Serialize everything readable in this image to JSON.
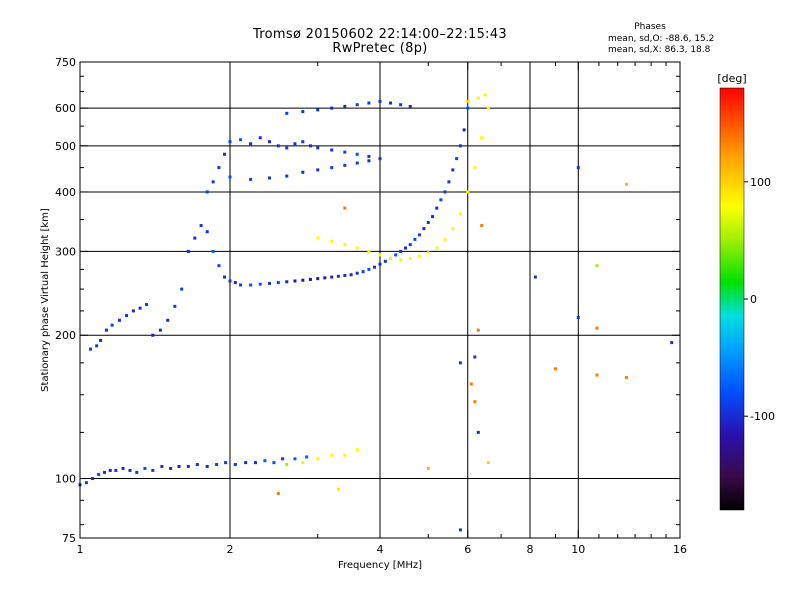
{
  "title_line1": "Tromsø 20150602 22:14:00–22:15:43",
  "title_line2": "RwPretec (8p)",
  "phases": {
    "title": "Phases",
    "o_mode": "mean, sd,O: -88.6, 15.2",
    "x_mode": "mean, sd,X: 86.3, 18.8"
  },
  "colorbar": {
    "label": "[deg]",
    "ticks": [
      {
        "value": 100,
        "label": "100"
      },
      {
        "value": 0,
        "label": "0"
      },
      {
        "value": -100,
        "label": "-100"
      }
    ],
    "range": [
      -180,
      180
    ]
  },
  "chart_data": {
    "type": "scatter",
    "title": "Tromsø 20150602 22:14:00–22:15:43",
    "subtitle": "RwPretec (8p)",
    "xlabel": "Frequency [MHz]",
    "ylabel": "Stationary phase Virtual Height [km]",
    "x_scale": "log",
    "y_scale": "log",
    "xlim": [
      1,
      16
    ],
    "ylim": [
      75,
      750
    ],
    "x_ticks": [
      {
        "value": 1,
        "label": "1"
      },
      {
        "value": 2,
        "label": "2"
      },
      {
        "value": 4,
        "label": "4"
      },
      {
        "value": 6,
        "label": "6"
      },
      {
        "value": 8,
        "label": "8"
      },
      {
        "value": 10,
        "label": "10"
      },
      {
        "value": 16,
        "label": "16"
      }
    ],
    "x_gridlines": [
      2,
      4,
      6,
      8,
      10
    ],
    "x_minor_ticks": [
      3,
      5,
      7,
      9,
      11,
      12,
      13,
      14,
      15
    ],
    "y_ticks": [
      {
        "value": 75,
        "label": "75"
      },
      {
        "value": 100,
        "label": "100"
      },
      {
        "value": 200,
        "label": "200"
      },
      {
        "value": 300,
        "label": "300"
      },
      {
        "value": 400,
        "label": "400"
      },
      {
        "value": 500,
        "label": "500"
      },
      {
        "value": 600,
        "label": "600"
      },
      {
        "value": 750,
        "label": "750"
      }
    ],
    "y_gridlines": [
      100,
      200,
      300,
      400,
      500,
      600
    ],
    "y_minor_ticks": [
      80,
      90,
      125,
      150,
      175,
      225,
      250,
      275,
      350,
      450,
      550,
      650,
      700
    ],
    "grid": true,
    "color_by": "phase [deg]",
    "series": [
      {
        "mode": "O",
        "x": [
          1.0,
          1.03,
          1.06,
          1.09,
          1.12,
          1.15,
          1.18,
          1.22,
          1.26,
          1.3,
          1.35,
          1.4,
          1.46,
          1.52,
          1.58,
          1.65,
          1.72,
          1.8,
          1.88,
          1.96,
          2.05,
          2.15,
          2.25,
          2.35,
          2.45,
          2.55,
          2.7,
          2.85
        ],
        "y": [
          97,
          98,
          100,
          102,
          103,
          104,
          104,
          105,
          104,
          103,
          105,
          104,
          106,
          105,
          106,
          106,
          107,
          106,
          107,
          108,
          107,
          108,
          108,
          109,
          108,
          110,
          110,
          111
        ],
        "phase": [
          -110,
          -108,
          -112,
          -105,
          -110,
          -115,
          -108,
          -112,
          -110,
          -105,
          -100,
          -108,
          -112,
          -110,
          -115,
          -108,
          -110,
          -112,
          -105,
          -110,
          -108,
          -112,
          -110,
          -95,
          -100,
          -105,
          -90,
          -85
        ]
      },
      {
        "mode": "O",
        "x": [
          1.05,
          1.08,
          1.1,
          1.13,
          1.16,
          1.2,
          1.24,
          1.28,
          1.32,
          1.36
        ],
        "y": [
          187,
          190,
          195,
          205,
          210,
          215,
          220,
          225,
          228,
          232
        ],
        "phase": [
          -110,
          -108,
          -112,
          -110,
          -105,
          -108,
          -110,
          -112,
          -110,
          -108
        ]
      },
      {
        "mode": "O",
        "x": [
          1.4,
          1.45,
          1.5,
          1.55,
          1.6,
          1.65,
          1.7,
          1.75,
          1.8,
          1.85,
          1.9,
          1.95,
          2.0,
          2.05,
          2.1,
          2.2,
          2.3,
          2.4,
          2.5,
          2.6,
          2.7,
          2.8,
          2.9,
          3.0,
          3.1,
          3.2,
          3.3,
          3.4,
          3.5,
          3.6,
          3.7,
          3.8,
          3.9,
          4.0,
          4.1,
          4.2,
          4.3,
          4.4,
          4.5,
          4.6,
          4.7,
          4.8,
          4.9,
          5.0,
          5.1,
          5.2,
          5.3,
          5.4,
          5.5,
          5.6,
          5.7,
          5.8,
          5.9,
          6.0
        ],
        "y": [
          200,
          205,
          215,
          230,
          250,
          300,
          320,
          340,
          330,
          300,
          280,
          265,
          260,
          258,
          255,
          255,
          256,
          257,
          258,
          259,
          260,
          261,
          262,
          263,
          264,
          265,
          266,
          267,
          268,
          270,
          272,
          275,
          278,
          282,
          286,
          290,
          295,
          300,
          305,
          310,
          318,
          325,
          335,
          345,
          355,
          370,
          385,
          400,
          420,
          445,
          470,
          500,
          540,
          600
        ],
        "phase": [
          -115,
          -110,
          -112,
          -108,
          -105,
          -110,
          -112,
          -108,
          -110,
          -100,
          -105,
          -110,
          -108,
          -112,
          -105,
          -100,
          -95,
          -110,
          -105,
          -115,
          -120,
          -125,
          -130,
          -125,
          -120,
          -115,
          -110,
          -108,
          -112,
          -110,
          -105,
          -100,
          -110,
          -112,
          -108,
          -105,
          -100,
          -110,
          -112,
          -108,
          -100,
          -105,
          -110,
          -108,
          -112,
          -110,
          -105,
          -108,
          -110,
          -112,
          -105,
          -108,
          -112,
          -100
        ]
      },
      {
        "mode": "O",
        "x": [
          1.8,
          1.85,
          1.9,
          1.95,
          2.0,
          2.1,
          2.2,
          2.3,
          2.4,
          2.5,
          2.6,
          2.7,
          2.8,
          2.9,
          3.0,
          3.2,
          3.4,
          3.6,
          3.8
        ],
        "y": [
          400,
          420,
          450,
          480,
          510,
          515,
          505,
          520,
          510,
          500,
          495,
          505,
          510,
          500,
          495,
          490,
          485,
          480,
          475
        ],
        "phase": [
          -105,
          -110,
          -108,
          -112,
          -105,
          -100,
          -110,
          -108,
          -112,
          -110,
          -105,
          -108,
          -110,
          -112,
          -108,
          -110,
          -105,
          -100,
          -108
        ]
      },
      {
        "mode": "O",
        "x": [
          2.0,
          2.2,
          2.4,
          2.6,
          2.8,
          3.0,
          3.2,
          3.4,
          3.6,
          3.8,
          4.0
        ],
        "y": [
          430,
          425,
          428,
          432,
          440,
          445,
          450,
          455,
          460,
          465,
          470
        ],
        "phase": [
          -100,
          -105,
          -110,
          -108,
          -112,
          -110,
          -105,
          -108,
          -110,
          -112,
          -108
        ]
      },
      {
        "mode": "O",
        "x": [
          2.6,
          2.8,
          3.0,
          3.2,
          3.4,
          3.6,
          3.8,
          4.0,
          4.2,
          4.4,
          4.6
        ],
        "y": [
          585,
          590,
          595,
          600,
          605,
          610,
          615,
          620,
          615,
          610,
          605
        ],
        "phase": [
          -105,
          -110,
          -108,
          -112,
          -110,
          -105,
          -108,
          -110,
          -112,
          -108,
          -110
        ]
      },
      {
        "mode": "X",
        "x": [
          3.0,
          3.2,
          3.4,
          3.6,
          3.8,
          4.0,
          4.2,
          4.4,
          4.6,
          4.8,
          5.0,
          5.2,
          5.4,
          5.6,
          5.8,
          6.0,
          6.2,
          6.4,
          6.6
        ],
        "y": [
          320,
          315,
          310,
          305,
          300,
          295,
          290,
          288,
          290,
          293,
          298,
          305,
          318,
          335,
          360,
          400,
          450,
          520,
          600
        ],
        "phase": [
          100,
          105,
          98,
          102,
          95,
          100,
          90,
          95,
          100,
          105,
          98,
          102,
          100,
          95,
          100,
          105,
          98,
          102,
          100
        ]
      },
      {
        "mode": "X",
        "x": [
          2.6,
          2.8,
          3.0,
          3.2,
          3.4,
          3.6
        ],
        "y": [
          107,
          108,
          110,
          112,
          112,
          115
        ],
        "phase": [
          60,
          90,
          100,
          95,
          105,
          100
        ]
      },
      {
        "mode": "X",
        "x": [
          6.0,
          6.3,
          6.5
        ],
        "y": [
          620,
          630,
          640
        ],
        "phase": [
          120,
          100,
          95
        ]
      }
    ],
    "scattered_points": [
      {
        "x": 8.2,
        "y": 265,
        "phase": -110
      },
      {
        "x": 10.0,
        "y": 218,
        "phase": -110
      },
      {
        "x": 10.9,
        "y": 280,
        "phase": 60
      },
      {
        "x": 10.9,
        "y": 207,
        "phase": 150
      },
      {
        "x": 15.4,
        "y": 193,
        "phase": -110
      },
      {
        "x": 9.0,
        "y": 170,
        "phase": 150
      },
      {
        "x": 10.9,
        "y": 165,
        "phase": 150
      },
      {
        "x": 12.5,
        "y": 163,
        "phase": 150
      },
      {
        "x": 12.5,
        "y": 415,
        "phase": 130
      },
      {
        "x": 10.0,
        "y": 450,
        "phase": -110
      },
      {
        "x": 6.4,
        "y": 340,
        "phase": 150
      },
      {
        "x": 6.3,
        "y": 205,
        "phase": 150
      },
      {
        "x": 5.8,
        "y": 175,
        "phase": -110
      },
      {
        "x": 6.2,
        "y": 180,
        "phase": -110
      },
      {
        "x": 5.8,
        "y": 78,
        "phase": -110
      },
      {
        "x": 6.3,
        "y": 125,
        "phase": -110
      },
      {
        "x": 6.1,
        "y": 158,
        "phase": 150
      },
      {
        "x": 6.2,
        "y": 145,
        "phase": 150
      },
      {
        "x": 6.6,
        "y": 108,
        "phase": 120
      },
      {
        "x": 5.0,
        "y": 105,
        "phase": 130
      },
      {
        "x": 3.4,
        "y": 370,
        "phase": 150
      },
      {
        "x": 2.5,
        "y": 93,
        "phase": 150
      },
      {
        "x": 3.3,
        "y": 95,
        "phase": 110
      }
    ]
  }
}
